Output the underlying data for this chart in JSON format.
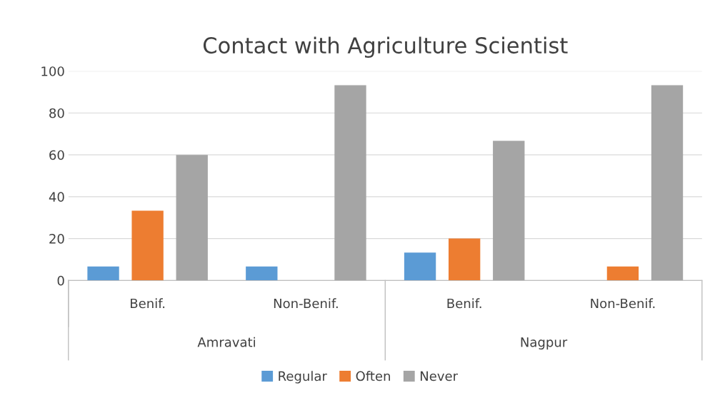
{
  "chart_data": {
    "type": "bar",
    "title": "Contact with Agriculture Scientist",
    "categories": [
      "Benif.",
      "Non-Benif.",
      "Benif.",
      "Non-Benif."
    ],
    "series": [
      {
        "name": "Regular",
        "color": "#5b9bd5",
        "values": [
          6.7,
          6.7,
          13.3,
          0
        ]
      },
      {
        "name": "Often",
        "color": "#ed7d31",
        "values": [
          33.3,
          0,
          20,
          6.7
        ]
      },
      {
        "name": "Never",
        "color": "#a5a5a5",
        "values": [
          60,
          93.3,
          66.7,
          93.3
        ]
      }
    ],
    "annotations": [
      "Amravati",
      "Nagpur"
    ],
    "ylim": [
      0,
      100
    ],
    "yticks": [
      0,
      20,
      40,
      60,
      80,
      100
    ],
    "grid": "y",
    "legend": "bottom"
  }
}
